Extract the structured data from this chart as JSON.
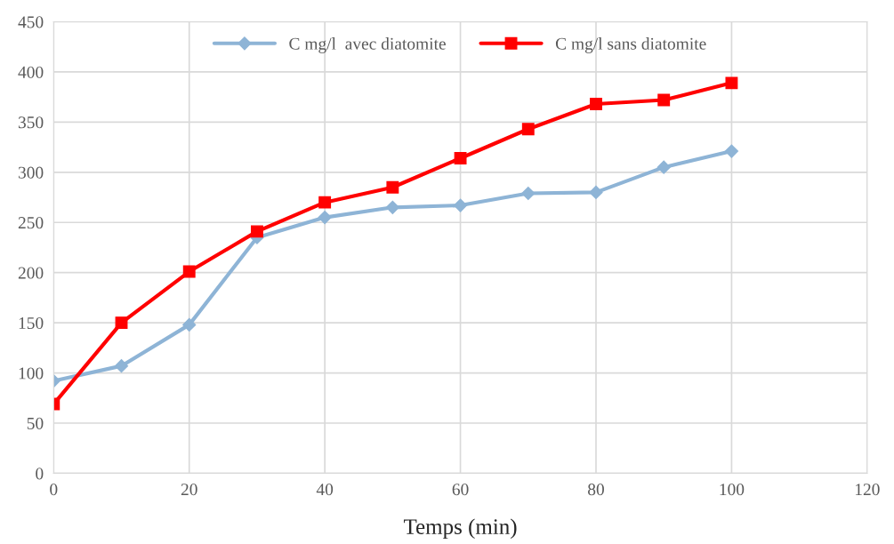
{
  "chart_data": {
    "type": "line",
    "xlabel": "Temps (min)",
    "x": [
      0,
      10,
      20,
      30,
      40,
      50,
      60,
      70,
      80,
      90,
      100
    ],
    "series": [
      {
        "name": "C mg/l  avec diatomite",
        "color": "#8eb4d6",
        "marker": "diamond",
        "values": [
          92,
          107,
          148,
          235,
          255,
          265,
          267,
          279,
          280,
          305,
          321
        ]
      },
      {
        "name": "C mg/l sans diatomite",
        "color": "#ff0000",
        "marker": "square",
        "values": [
          69,
          150,
          201,
          241,
          270,
          285,
          314,
          343,
          368,
          372,
          389
        ]
      }
    ],
    "xlim": [
      0,
      120
    ],
    "xticks": [
      0,
      20,
      40,
      60,
      80,
      100,
      120
    ],
    "ylim": [
      0,
      450
    ],
    "yticks": [
      0,
      50,
      100,
      150,
      200,
      250,
      300,
      350,
      400,
      450
    ],
    "grid": true,
    "legend": "top",
    "line_style": "solid"
  }
}
